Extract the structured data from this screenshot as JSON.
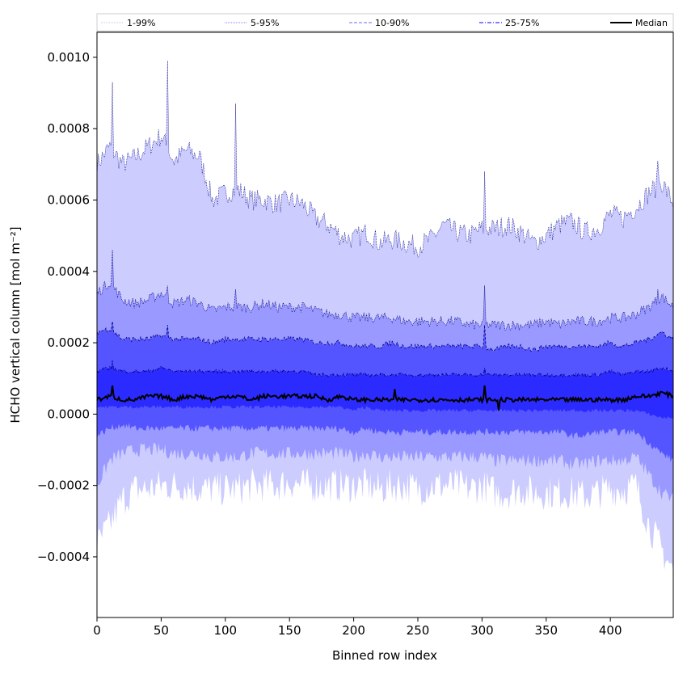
{
  "chart_data": {
    "type": "area",
    "title": "",
    "xlabel": "Binned row index",
    "ylabel": "HCHO vertical column [mol m⁻²]",
    "xlim": [
      0,
      449
    ],
    "ylim": [
      -0.00057,
      0.00107
    ],
    "xticks": [
      0,
      50,
      100,
      150,
      200,
      250,
      300,
      350,
      400
    ],
    "xtick_labels": [
      "0",
      "50",
      "100",
      "150",
      "200",
      "250",
      "300",
      "350",
      "400"
    ],
    "yticks": [
      -0.0004,
      -0.0002,
      0.0,
      0.0002,
      0.0004,
      0.0006,
      0.0008,
      0.001
    ],
    "ytick_labels": [
      "−0.0004",
      "−0.0002",
      "0.0000",
      "0.0002",
      "0.0004",
      "0.0006",
      "0.0008",
      "0.0010"
    ],
    "grid": false,
    "legend_position": "top",
    "colors": {
      "band_1_99": "#ccccff",
      "band_5_95": "#9999ff",
      "band_10_90": "#5555ff",
      "band_25_75": "#2b2bff",
      "percentile_line": "#000080",
      "median": "#000000"
    },
    "series": [
      {
        "name": "1-99%",
        "x": [
          0,
          10,
          20,
          30,
          40,
          50,
          60,
          70,
          80,
          90,
          100,
          110,
          120,
          130,
          140,
          150,
          160,
          170,
          180,
          190,
          200,
          210,
          220,
          230,
          240,
          250,
          260,
          270,
          280,
          290,
          300,
          310,
          320,
          330,
          340,
          350,
          360,
          370,
          380,
          390,
          400,
          410,
          420,
          430,
          440,
          449
        ],
        "lower": [
          -0.00037,
          -0.00031,
          -0.00024,
          -0.00021,
          -0.00021,
          -0.0002,
          -0.0002,
          -0.0002,
          -0.00021,
          -0.00021,
          -0.00021,
          -0.00021,
          -0.0002,
          -0.0002,
          -0.0002,
          -0.00019,
          -0.0002,
          -0.0002,
          -0.0002,
          -0.0002,
          -0.0002,
          -0.0002,
          -0.00021,
          -0.0002,
          -0.0002,
          -0.00021,
          -0.0002,
          -0.0002,
          -0.0002,
          -0.00021,
          -0.0002,
          -0.00022,
          -0.00022,
          -0.00021,
          -0.00022,
          -0.00022,
          -0.00022,
          -0.00022,
          -0.00023,
          -0.00022,
          -0.00021,
          -0.00021,
          -0.0002,
          -0.00031,
          -0.00038,
          -0.00044
        ],
        "upper": [
          0.0007,
          0.00075,
          0.0007,
          0.00072,
          0.00075,
          0.00078,
          0.00071,
          0.00074,
          0.00072,
          0.0006,
          0.00062,
          0.00063,
          0.0006,
          0.0006,
          0.00059,
          0.0006,
          0.00059,
          0.00055,
          0.00053,
          0.0005,
          0.00049,
          0.00051,
          0.00048,
          0.00049,
          0.00048,
          0.00047,
          0.00049,
          0.00053,
          0.00051,
          0.0005,
          0.00052,
          0.00052,
          0.00053,
          0.00051,
          0.00048,
          0.0005,
          0.00053,
          0.00054,
          0.00051,
          0.00052,
          0.00056,
          0.00055,
          0.00058,
          0.00062,
          0.00065,
          0.00059
        ],
        "spikes": [
          [
            12,
            0.00093
          ],
          [
            55,
            0.00099
          ],
          [
            108,
            0.00087
          ],
          [
            302,
            0.00068
          ],
          [
            437,
            0.00071
          ]
        ]
      },
      {
        "name": "5-95%",
        "x": [
          0,
          10,
          20,
          30,
          40,
          50,
          60,
          70,
          80,
          90,
          100,
          110,
          120,
          130,
          140,
          150,
          160,
          170,
          180,
          190,
          200,
          210,
          220,
          230,
          240,
          250,
          260,
          270,
          280,
          290,
          300,
          310,
          320,
          330,
          340,
          350,
          360,
          370,
          380,
          390,
          400,
          410,
          420,
          430,
          440,
          449
        ],
        "lower": [
          -0.0002,
          -0.00013,
          -0.00011,
          -0.0001,
          -0.0001,
          -0.0001,
          -0.00011,
          -0.00011,
          -0.00011,
          -0.00012,
          -0.00012,
          -0.00012,
          -0.00011,
          -0.00011,
          -0.00011,
          -0.00011,
          -0.00011,
          -0.00011,
          -0.00011,
          -0.00011,
          -0.00012,
          -0.00011,
          -0.00012,
          -0.00012,
          -0.00012,
          -0.00012,
          -0.00012,
          -0.00012,
          -0.00012,
          -0.00012,
          -0.00012,
          -0.00013,
          -0.00013,
          -0.00013,
          -0.00013,
          -0.00013,
          -0.00013,
          -0.00014,
          -0.00014,
          -0.00013,
          -0.00013,
          -0.00013,
          -0.00012,
          -0.00017,
          -0.00022,
          -0.00024
        ],
        "upper": [
          0.00034,
          0.00037,
          0.00032,
          0.00031,
          0.00032,
          0.00034,
          0.00031,
          0.00032,
          0.00031,
          0.00029,
          0.0003,
          0.0003,
          0.0003,
          0.00031,
          0.0003,
          0.0003,
          0.0003,
          0.00029,
          0.00028,
          0.00028,
          0.00027,
          0.00027,
          0.00027,
          0.00027,
          0.00026,
          0.00026,
          0.00026,
          0.00026,
          0.00026,
          0.00025,
          0.00025,
          0.00025,
          0.00025,
          0.00025,
          0.00025,
          0.00026,
          0.00025,
          0.00026,
          0.00026,
          0.00026,
          0.00027,
          0.00027,
          0.00028,
          0.0003,
          0.00033,
          0.0003
        ],
        "spikes": [
          [
            12,
            0.00046
          ],
          [
            55,
            0.00036
          ],
          [
            108,
            0.00035
          ],
          [
            302,
            0.00036
          ],
          [
            437,
            0.00035
          ]
        ]
      },
      {
        "name": "10-90%",
        "x": [
          0,
          10,
          20,
          30,
          40,
          50,
          60,
          70,
          80,
          90,
          100,
          110,
          120,
          130,
          140,
          150,
          160,
          170,
          180,
          190,
          200,
          210,
          220,
          230,
          240,
          250,
          260,
          270,
          280,
          290,
          300,
          310,
          320,
          330,
          340,
          350,
          360,
          370,
          380,
          390,
          400,
          410,
          420,
          430,
          440,
          449
        ],
        "lower": [
          -6e-05,
          -4e-05,
          -3e-05,
          -4e-05,
          -4e-05,
          -4e-05,
          -4e-05,
          -4e-05,
          -4e-05,
          -4e-05,
          -4e-05,
          -4e-05,
          -4e-05,
          -4e-05,
          -4e-05,
          -4e-05,
          -4e-05,
          -4e-05,
          -4e-05,
          -4e-05,
          -5e-05,
          -4e-05,
          -5e-05,
          -5e-05,
          -5e-05,
          -5e-05,
          -5e-05,
          -5e-05,
          -5e-05,
          -5e-05,
          -5e-05,
          -5e-05,
          -5e-05,
          -5e-05,
          -5e-05,
          -5e-05,
          -5e-05,
          -6e-05,
          -6e-05,
          -5e-05,
          -5e-05,
          -5e-05,
          -5e-05,
          -8e-05,
          -0.00011,
          -0.00013
        ],
        "upper": [
          0.00023,
          0.00024,
          0.00021,
          0.00021,
          0.00021,
          0.00022,
          0.00021,
          0.00021,
          0.00021,
          0.0002,
          0.00021,
          0.00021,
          0.00021,
          0.00021,
          0.00021,
          0.00021,
          0.00021,
          0.0002,
          0.0002,
          0.0002,
          0.00019,
          0.00019,
          0.00019,
          0.0002,
          0.00019,
          0.00019,
          0.00019,
          0.00019,
          0.00019,
          0.00019,
          0.00019,
          0.00018,
          0.00019,
          0.00019,
          0.00018,
          0.00019,
          0.00019,
          0.00019,
          0.00019,
          0.00019,
          0.0002,
          0.00019,
          0.0002,
          0.00021,
          0.00023,
          0.00021
        ],
        "spikes": [
          [
            12,
            0.00026
          ],
          [
            55,
            0.00025
          ],
          [
            302,
            0.00025
          ]
        ]
      },
      {
        "name": "25-75%",
        "x": [
          0,
          10,
          20,
          30,
          40,
          50,
          60,
          70,
          80,
          90,
          100,
          110,
          120,
          130,
          140,
          150,
          160,
          170,
          180,
          190,
          200,
          210,
          220,
          230,
          240,
          250,
          260,
          270,
          280,
          290,
          300,
          310,
          320,
          330,
          340,
          350,
          360,
          370,
          380,
          390,
          400,
          410,
          420,
          430,
          440,
          449
        ],
        "lower": [
          2e-05,
          2e-05,
          2e-05,
          2e-05,
          2e-05,
          2e-05,
          2e-05,
          2e-05,
          2e-05,
          2e-05,
          2e-05,
          2e-05,
          2e-05,
          2e-05,
          2e-05,
          2e-05,
          2e-05,
          2e-05,
          2e-05,
          2e-05,
          1e-05,
          2e-05,
          1e-05,
          1e-05,
          1e-05,
          1e-05,
          1e-05,
          1e-05,
          1e-05,
          1e-05,
          1e-05,
          1e-05,
          1e-05,
          1e-05,
          1e-05,
          1e-05,
          1e-05,
          1e-05,
          1e-05,
          1e-05,
          1e-05,
          1e-05,
          1e-05,
          0.0,
          -1e-05,
          -1e-05
        ],
        "upper": [
          0.00012,
          0.00013,
          0.00012,
          0.00012,
          0.00012,
          0.00013,
          0.00012,
          0.00012,
          0.00012,
          0.00012,
          0.00012,
          0.00012,
          0.00012,
          0.00012,
          0.00012,
          0.00012,
          0.00012,
          0.00011,
          0.00011,
          0.00011,
          0.00011,
          0.00011,
          0.00011,
          0.00011,
          0.00011,
          0.00011,
          0.00011,
          0.00011,
          0.00011,
          0.00011,
          0.00011,
          0.00011,
          0.00011,
          0.00011,
          0.00011,
          0.00011,
          0.00011,
          0.00011,
          0.00011,
          0.00011,
          0.00012,
          0.00011,
          0.00012,
          0.00012,
          0.00013,
          0.00012
        ],
        "spikes": [
          [
            12,
            0.00015
          ],
          [
            302,
            0.00013
          ]
        ]
      },
      {
        "name": "Median",
        "x": [
          0,
          10,
          20,
          30,
          40,
          50,
          60,
          70,
          80,
          90,
          100,
          110,
          120,
          130,
          140,
          150,
          160,
          170,
          180,
          190,
          200,
          210,
          220,
          230,
          240,
          250,
          260,
          270,
          280,
          290,
          300,
          310,
          320,
          330,
          340,
          350,
          360,
          370,
          380,
          390,
          400,
          410,
          420,
          430,
          440,
          449
        ],
        "values": [
          4e-05,
          5e-05,
          4e-05,
          4e-05,
          5e-05,
          5e-05,
          4e-05,
          5e-05,
          5e-05,
          4e-05,
          5e-05,
          5e-05,
          4e-05,
          5e-05,
          5e-05,
          5e-05,
          5e-05,
          5e-05,
          4e-05,
          5e-05,
          4e-05,
          4e-05,
          4e-05,
          4e-05,
          4e-05,
          4e-05,
          4e-05,
          4e-05,
          4e-05,
          4e-05,
          4e-05,
          4e-05,
          4e-05,
          4e-05,
          4e-05,
          4e-05,
          4e-05,
          4e-05,
          4e-05,
          4e-05,
          4e-05,
          4e-05,
          5e-05,
          5e-05,
          6e-05,
          5e-05
        ],
        "spikes": [
          [
            12,
            8e-05
          ],
          [
            232,
            7e-05
          ],
          [
            302,
            8e-05
          ],
          [
            313,
            1e-05
          ]
        ]
      }
    ],
    "legend": [
      {
        "label": "1-99%",
        "style": "dotted",
        "color": "#ccccff"
      },
      {
        "label": "5-95%",
        "style": "dotted",
        "color": "#9999ff"
      },
      {
        "label": "10-90%",
        "style": "dashed",
        "color": "#8888ff"
      },
      {
        "label": "25-75%",
        "style": "dashdot",
        "color": "#3333ff"
      },
      {
        "label": "Median",
        "style": "solid",
        "color": "#000000"
      }
    ]
  }
}
